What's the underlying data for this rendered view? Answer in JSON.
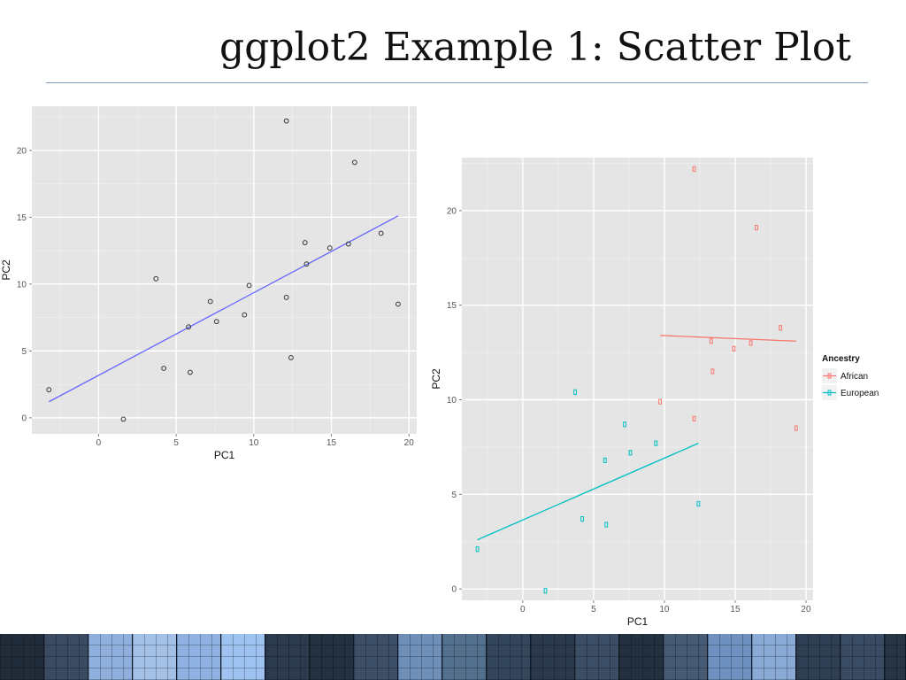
{
  "slide": {
    "title": "ggplot2 Example 1: Scatter Plot"
  },
  "colors": {
    "panel_background": "#e5e5e5",
    "grid_line": "#ffffff",
    "plain_point": "#333333",
    "plain_fit_line": "#6666ff",
    "african": "#f8766d",
    "european": "#00bfc4",
    "title_rule": "#7f9cc0",
    "footer": "#1c2a3a"
  },
  "chart_data": [
    {
      "type": "scatter",
      "xlabel": "PC1",
      "ylabel": "PC2",
      "xlim": [
        -4.3,
        20.5
      ],
      "ylim": [
        -1.2,
        23.3
      ],
      "xticks": [
        0,
        5,
        10,
        15,
        20
      ],
      "yticks": [
        0,
        5,
        10,
        15,
        20
      ],
      "grid": true,
      "points": [
        {
          "x": -3.2,
          "y": 2.1
        },
        {
          "x": 1.6,
          "y": -0.1
        },
        {
          "x": 3.7,
          "y": 10.4
        },
        {
          "x": 4.2,
          "y": 3.7
        },
        {
          "x": 5.9,
          "y": 3.4
        },
        {
          "x": 5.8,
          "y": 6.8
        },
        {
          "x": 7.2,
          "y": 8.7
        },
        {
          "x": 7.6,
          "y": 7.2
        },
        {
          "x": 9.4,
          "y": 7.7
        },
        {
          "x": 9.7,
          "y": 9.9
        },
        {
          "x": 12.1,
          "y": 9.0
        },
        {
          "x": 12.1,
          "y": 22.2
        },
        {
          "x": 12.4,
          "y": 4.5
        },
        {
          "x": 13.3,
          "y": 13.1
        },
        {
          "x": 13.4,
          "y": 11.5
        },
        {
          "x": 14.9,
          "y": 12.7
        },
        {
          "x": 16.1,
          "y": 13.0
        },
        {
          "x": 16.5,
          "y": 19.1
        },
        {
          "x": 18.2,
          "y": 13.8
        },
        {
          "x": 19.3,
          "y": 8.5
        }
      ],
      "fit_line": {
        "x": [
          -3.2,
          19.3
        ],
        "y": [
          1.2,
          15.1
        ]
      }
    },
    {
      "type": "scatter",
      "xlabel": "PC1",
      "ylabel": "PC2",
      "xlim": [
        -4.3,
        20.5
      ],
      "ylim": [
        -0.6,
        22.8
      ],
      "xticks": [
        0,
        5,
        10,
        15,
        20
      ],
      "yticks": [
        0,
        5,
        10,
        15,
        20
      ],
      "grid": true,
      "legend": {
        "title": "Ancestry",
        "position": "right"
      },
      "series": [
        {
          "name": "African",
          "color": "#f8766d",
          "points": [
            {
              "x": 9.7,
              "y": 9.9
            },
            {
              "x": 12.1,
              "y": 9.0
            },
            {
              "x": 12.1,
              "y": 22.2
            },
            {
              "x": 13.3,
              "y": 13.1
            },
            {
              "x": 13.4,
              "y": 11.5
            },
            {
              "x": 14.9,
              "y": 12.7
            },
            {
              "x": 16.1,
              "y": 13.0
            },
            {
              "x": 16.5,
              "y": 19.1
            },
            {
              "x": 18.2,
              "y": 13.8
            },
            {
              "x": 19.3,
              "y": 8.5
            }
          ],
          "fit_line": {
            "x": [
              9.7,
              19.3
            ],
            "y": [
              13.4,
              13.1
            ]
          }
        },
        {
          "name": "European",
          "color": "#00bfc4",
          "points": [
            {
              "x": -3.2,
              "y": 2.1
            },
            {
              "x": 1.6,
              "y": -0.1
            },
            {
              "x": 3.7,
              "y": 10.4
            },
            {
              "x": 4.2,
              "y": 3.7
            },
            {
              "x": 5.9,
              "y": 3.4
            },
            {
              "x": 5.8,
              "y": 6.8
            },
            {
              "x": 7.2,
              "y": 8.7
            },
            {
              "x": 7.6,
              "y": 7.2
            },
            {
              "x": 9.4,
              "y": 7.7
            },
            {
              "x": 12.4,
              "y": 4.5
            }
          ],
          "fit_line": {
            "x": [
              -3.2,
              12.4
            ],
            "y": [
              2.6,
              7.7
            ]
          }
        }
      ]
    }
  ]
}
